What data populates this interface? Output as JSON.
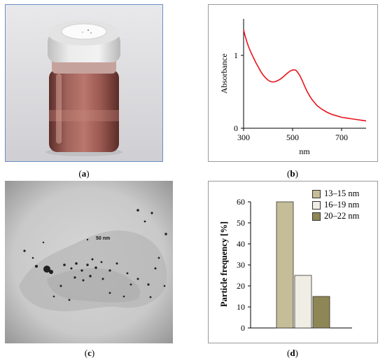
{
  "captions": {
    "a": {
      "open": "(",
      "letter": "a",
      "close": ")"
    },
    "b": {
      "open": "(",
      "letter": "b",
      "close": ")"
    },
    "c": {
      "open": "(",
      "letter": "c",
      "close": ")"
    },
    "d": {
      "open": "(",
      "letter": "d",
      "close": ")"
    }
  },
  "tem": {
    "scale_label": "50 nm"
  },
  "chart_data": [
    {
      "type": "line",
      "xlabel": "nm",
      "ylabel": "Absorbance",
      "xlim": [
        300,
        800
      ],
      "ylim": [
        0,
        1.5
      ],
      "x_ticks": [
        300,
        500,
        700
      ],
      "y_ticks": [
        0,
        1
      ],
      "series": [
        {
          "color": "#e8141c",
          "x": [
            300,
            305,
            312,
            320,
            330,
            340,
            350,
            360,
            370,
            380,
            390,
            400,
            410,
            420,
            430,
            440,
            450,
            460,
            470,
            480,
            490,
            500,
            510,
            515,
            520,
            530,
            540,
            550,
            560,
            570,
            580,
            590,
            600,
            620,
            640,
            660,
            680,
            700,
            720,
            740,
            760,
            780,
            800
          ],
          "y": [
            1.35,
            1.28,
            1.2,
            1.12,
            1.04,
            0.97,
            0.9,
            0.84,
            0.78,
            0.73,
            0.69,
            0.66,
            0.64,
            0.635,
            0.64,
            0.655,
            0.675,
            0.7,
            0.73,
            0.76,
            0.785,
            0.8,
            0.8,
            0.79,
            0.77,
            0.72,
            0.65,
            0.57,
            0.5,
            0.44,
            0.39,
            0.35,
            0.31,
            0.26,
            0.22,
            0.19,
            0.17,
            0.15,
            0.14,
            0.13,
            0.12,
            0.11,
            0.1
          ]
        }
      ]
    },
    {
      "type": "bar",
      "ylabel": "Particle frequency [%]",
      "ylim": [
        0,
        60
      ],
      "y_ticks": [
        0,
        10,
        20,
        30,
        40,
        50,
        60
      ],
      "legend_placement": "top-right",
      "series": [
        {
          "name": "13–15 nm",
          "value": 60,
          "color": "#c4bd98"
        },
        {
          "name": "16–19 nm",
          "value": 25,
          "color": "#f0eee4"
        },
        {
          "name": "20–22 nm",
          "value": 15,
          "color": "#8f8656"
        }
      ]
    }
  ]
}
